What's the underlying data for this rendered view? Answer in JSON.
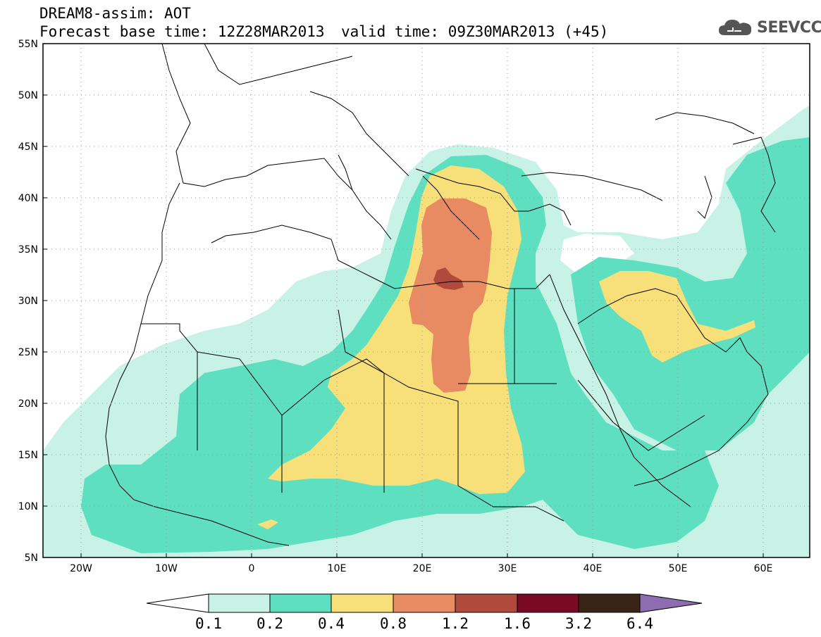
{
  "header": {
    "line1": "DREAM8-assim: AOT",
    "base_time": "Forecast base time: 12Z28MAR2013",
    "valid_time": "valid time: 09Z30MAR2013 (+45)"
  },
  "logo": {
    "icon": "cloud-logo-icon",
    "text": "SEEVCCC"
  },
  "map": {
    "lon_range": [
      -25,
      65
    ],
    "lat_range": [
      5,
      55
    ],
    "lon_ticks": [
      "20W",
      "10W",
      "0",
      "10E",
      "20E",
      "30E",
      "40E",
      "50E",
      "60E"
    ],
    "lat_ticks": [
      "55N",
      "50N",
      "45N",
      "40N",
      "35N",
      "30N",
      "25N",
      "20N",
      "15N",
      "10N",
      "5N"
    ]
  },
  "colorbar": {
    "labels": [
      "0.1",
      "0.2",
      "0.4",
      "0.8",
      "1.2",
      "1.6",
      "3.2",
      "6.4"
    ],
    "colors": [
      "#c8f2e6",
      "#5ee0c0",
      "#f7e07a",
      "#e88a62",
      "#b04a3c",
      "#7a0a24",
      "#3a2418",
      "#8e6cb0"
    ]
  }
}
